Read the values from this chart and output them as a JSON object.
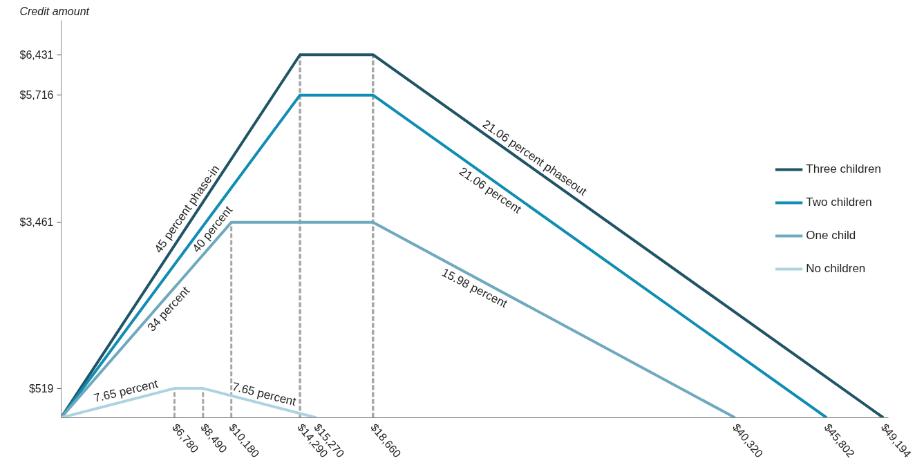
{
  "chart_data": {
    "type": "line",
    "ylabel": "Credit amount",
    "series": [
      {
        "name": "Three children",
        "color": "#1f5466",
        "x": [
          0,
          14290,
          18660,
          49194
        ],
        "values": [
          0,
          6431,
          6431,
          0
        ]
      },
      {
        "name": "Two children",
        "color": "#0f8db3",
        "x": [
          0,
          14290,
          18660,
          45802
        ],
        "values": [
          0,
          5716,
          5716,
          0
        ]
      },
      {
        "name": "One child",
        "color": "#6fa9be",
        "x": [
          0,
          10180,
          18660,
          40320
        ],
        "values": [
          0,
          3461,
          3461,
          0
        ]
      },
      {
        "name": "No children",
        "color": "#add3e0",
        "x": [
          0,
          6780,
          8490,
          15270
        ],
        "values": [
          0,
          519,
          519,
          0
        ]
      },
      {
        "color": "#a6a6a6",
        "line_style": "dashed",
        "x": [
          6780,
          6780
        ],
        "values": [
          0,
          519
        ]
      },
      {
        "color": "#a6a6a6",
        "line_style": "dashed",
        "x": [
          8490,
          8490
        ],
        "values": [
          0,
          519
        ]
      },
      {
        "color": "#a6a6a6",
        "line_style": "dashed",
        "x": [
          10180,
          10180
        ],
        "values": [
          0,
          3461
        ]
      }
    ],
    "ref_lines": [
      {
        "axis": "x",
        "value": 14290,
        "color": "#a6a6a6",
        "line_style": "dashed"
      },
      {
        "axis": "x",
        "value": 18660,
        "color": "#a6a6a6",
        "line_style": "dashed"
      }
    ],
    "xlim": [
      0,
      49500
    ],
    "ylim": [
      0,
      7040
    ],
    "xticks": [
      {
        "value": 6780,
        "label": "$6,780"
      },
      {
        "value": 8490,
        "label": "$8,490"
      },
      {
        "value": 10180,
        "label": "$10,180"
      },
      {
        "value": 14290,
        "label": "$14,290"
      },
      {
        "value": 15270,
        "label": "$15,270"
      },
      {
        "value": 18660,
        "label": "$18,660"
      },
      {
        "value": 40320,
        "label": "$40,320"
      },
      {
        "value": 45802,
        "label": "$45,802"
      },
      {
        "value": 49194,
        "label": "$49,194"
      }
    ],
    "yticks": [
      {
        "value": 519,
        "label": "$519"
      },
      {
        "value": 3461,
        "label": "$3,461"
      },
      {
        "value": 5716,
        "label": "$5,716"
      },
      {
        "value": 6431,
        "label": "$6,431"
      }
    ],
    "annotations": [
      {
        "text": "45 percent phase-in",
        "x": 8000,
        "y": 3600
      },
      {
        "text": "40 percent",
        "x": 9500,
        "y": 3230
      },
      {
        "text": "34 percent",
        "x": 6000,
        "y": 2040
      },
      {
        "text": "21.06 percent phaseout",
        "x": 28000,
        "y": 4464
      },
      {
        "text": "21.06 percent",
        "x": 26000,
        "y": 4170
      },
      {
        "text": "15.98 percent",
        "x": 25000,
        "y": 2448
      },
      {
        "text": "7.65 percent",
        "x": 4000,
        "y": 306
      },
      {
        "text": "7.65 percent",
        "x": 12000,
        "y": 250
      }
    ],
    "grid": false,
    "legend": "right",
    "marker": "none",
    "line_style": "solid"
  }
}
